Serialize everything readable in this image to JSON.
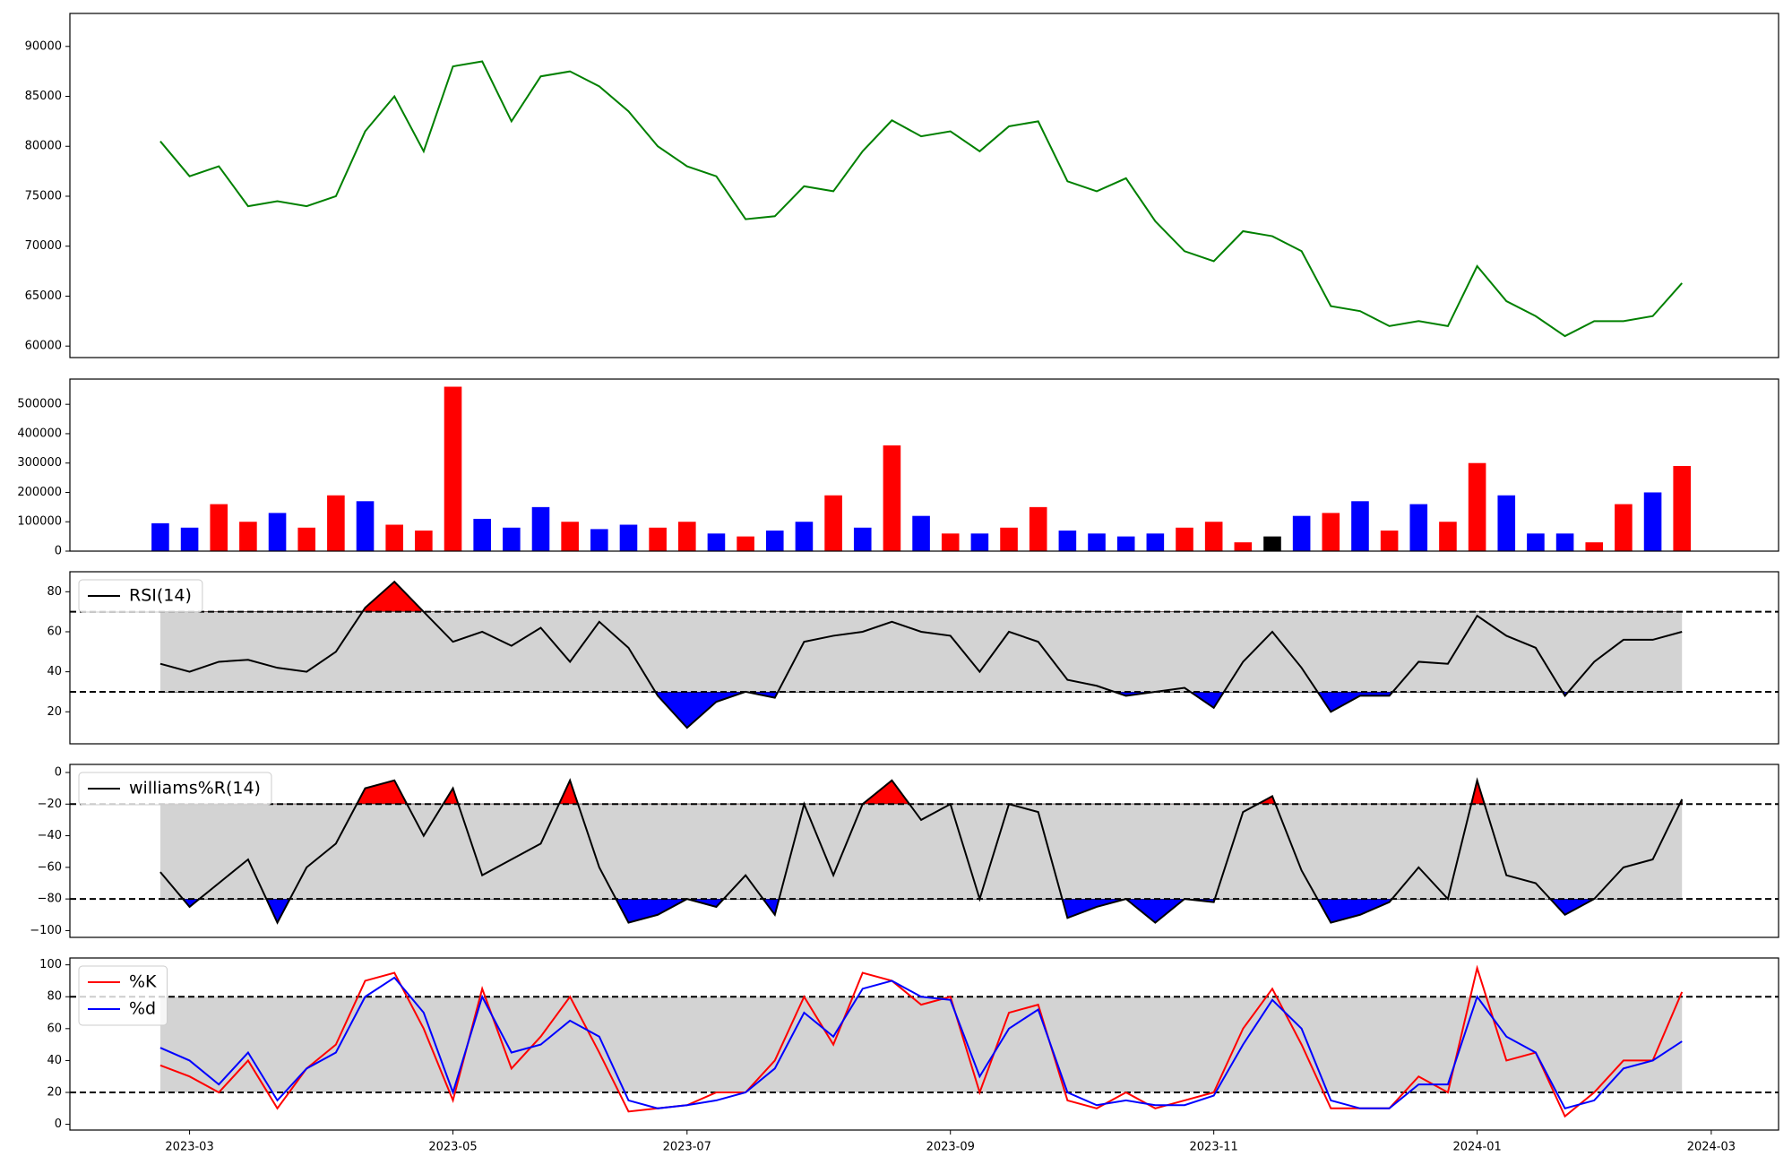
{
  "chart_data": [
    {
      "type": "line",
      "color": "green",
      "values": [
        80500,
        77000,
        78000,
        74000,
        74500,
        74000,
        75000,
        81500,
        85000,
        79500,
        88000,
        88500,
        82500,
        87000,
        87500,
        86000,
        83500,
        80000,
        78000,
        77000,
        72700,
        73000,
        76000,
        75500,
        79500,
        82600,
        81000,
        81500,
        79500,
        82000,
        82500,
        76500,
        75500,
        76800,
        72500,
        69500,
        68500,
        71500,
        71000,
        69500,
        64000,
        63500,
        62000,
        62500,
        62000,
        68000,
        64500,
        63000,
        61000,
        62500,
        62500,
        63000,
        66300,
        null
      ],
      "ylim": [
        58850,
        93300
      ],
      "yticks": [
        60000,
        65000,
        70000,
        75000,
        80000,
        85000,
        90000
      ]
    },
    {
      "type": "bar",
      "values": [
        95000,
        80000,
        160000,
        100000,
        130000,
        80000,
        190000,
        170000,
        90000,
        70000,
        560000,
        110000,
        80000,
        150000,
        100000,
        75000,
        90000,
        80000,
        100000,
        60000,
        50000,
        70000,
        100000,
        190000,
        80000,
        360000,
        120000,
        60000,
        60000,
        80000,
        150000,
        70000,
        60000,
        50000,
        60000,
        80000,
        100000,
        30000,
        50000,
        120000,
        130000,
        170000,
        70000,
        160000,
        100000,
        300000,
        190000,
        60000,
        60000,
        30000,
        160000,
        200000,
        290000,
        null
      ],
      "colors": [
        "blue",
        "blue",
        "red",
        "red",
        "blue",
        "red",
        "red",
        "blue",
        "red",
        "red",
        "red",
        "blue",
        "blue",
        "blue",
        "red",
        "blue",
        "blue",
        "red",
        "red",
        "blue",
        "red",
        "blue",
        "blue",
        "red",
        "blue",
        "red",
        "blue",
        "red",
        "blue",
        "red",
        "red",
        "blue",
        "blue",
        "blue",
        "blue",
        "red",
        "red",
        "red",
        "black",
        "blue",
        "red",
        "blue",
        "red",
        "blue",
        "red",
        "red",
        "blue",
        "blue",
        "blue",
        "red",
        "red",
        "blue",
        "red",
        null
      ],
      "ylim": [
        0,
        586000
      ],
      "yticks": [
        0,
        100000,
        200000,
        300000,
        400000,
        500000
      ]
    },
    {
      "type": "line",
      "series": [
        {
          "name": "RSI(14)",
          "color": "black",
          "values": [
            44,
            40,
            45,
            46,
            42,
            40,
            50,
            72,
            85,
            70,
            55,
            60,
            53,
            62,
            45,
            65,
            52,
            28,
            12,
            25,
            30,
            27,
            55,
            58,
            60,
            65,
            60,
            58,
            40,
            60,
            55,
            36,
            33,
            28,
            30,
            32,
            22,
            45,
            60,
            42,
            20,
            28,
            28,
            45,
            44,
            68,
            58,
            52,
            28,
            45,
            56,
            56,
            60,
            null
          ]
        }
      ],
      "bands": [
        30,
        70
      ],
      "band_fill": "lightgray",
      "above_color": "red",
      "below_color": "blue",
      "legend": "upper left",
      "ylim": [
        4,
        90
      ],
      "yticks": [
        20,
        40,
        60,
        80
      ]
    },
    {
      "type": "line",
      "series": [
        {
          "name": "williams%R(14)",
          "color": "black",
          "values": [
            -63,
            -85,
            -70,
            -55,
            -95,
            -60,
            -45,
            -10,
            -5,
            -40,
            -10,
            -65,
            -55,
            -45,
            -5,
            -60,
            -95,
            -90,
            -80,
            -85,
            -65,
            -90,
            -20,
            -65,
            -20,
            -5,
            -30,
            -20,
            -80,
            -20,
            -25,
            -92,
            -85,
            -80,
            -95,
            -80,
            -82,
            -25,
            -15,
            -62,
            -95,
            -90,
            -82,
            -60,
            -80,
            -5,
            -65,
            -70,
            -90,
            -80,
            -60,
            -55,
            -17,
            null
          ]
        }
      ],
      "bands": [
        -80,
        -20
      ],
      "band_fill": "lightgray",
      "above_color": "red",
      "below_color": "blue",
      "legend": "upper left",
      "ylim": [
        -104.3,
        5.1
      ],
      "yticks": [
        {
          "value": -100,
          "label": "−100"
        },
        {
          "value": -80,
          "label": "−80"
        },
        {
          "value": -60,
          "label": "−60"
        },
        {
          "value": -40,
          "label": "−40"
        },
        {
          "value": -20,
          "label": "−20"
        },
        0
      ]
    },
    {
      "type": "line",
      "series": [
        {
          "name": "%K",
          "color": "red",
          "values": [
            37,
            30,
            20,
            40,
            10,
            35,
            50,
            90,
            95,
            60,
            15,
            85,
            35,
            55,
            80,
            45,
            8,
            10,
            12,
            20,
            20,
            40,
            80,
            50,
            95,
            90,
            75,
            80,
            20,
            70,
            75,
            15,
            10,
            20,
            10,
            15,
            20,
            60,
            85,
            50,
            10,
            10,
            10,
            30,
            20,
            98,
            40,
            45,
            5,
            20,
            40,
            40,
            83,
            null
          ]
        },
        {
          "name": "%d",
          "color": "blue",
          "values": [
            48,
            40,
            25,
            45,
            15,
            35,
            45,
            80,
            92,
            70,
            20,
            80,
            45,
            50,
            65,
            55,
            15,
            10,
            12,
            15,
            20,
            35,
            70,
            55,
            85,
            90,
            80,
            78,
            30,
            60,
            72,
            20,
            12,
            15,
            12,
            12,
            18,
            50,
            78,
            60,
            15,
            10,
            10,
            25,
            25,
            80,
            55,
            45,
            10,
            15,
            35,
            40,
            52,
            null
          ]
        }
      ],
      "bands": [
        20,
        80
      ],
      "band_fill": "lightgray",
      "legend": "upper left",
      "ylim": [
        -3.6,
        104.3
      ],
      "yticks": [
        0,
        20,
        40,
        60,
        80,
        100
      ],
      "categories": [
        null,
        "2023-03",
        null,
        null,
        null,
        null,
        null,
        null,
        null,
        null,
        "2023-05",
        null,
        null,
        null,
        null,
        null,
        null,
        null,
        "2023-07",
        null,
        null,
        null,
        null,
        null,
        null,
        null,
        null,
        "2023-09",
        null,
        null,
        null,
        null,
        null,
        null,
        null,
        null,
        "2023-11",
        null,
        null,
        null,
        null,
        null,
        null,
        null,
        null,
        "2024-01",
        null,
        null,
        null,
        null,
        null,
        null,
        null,
        "2024-03"
      ]
    }
  ]
}
